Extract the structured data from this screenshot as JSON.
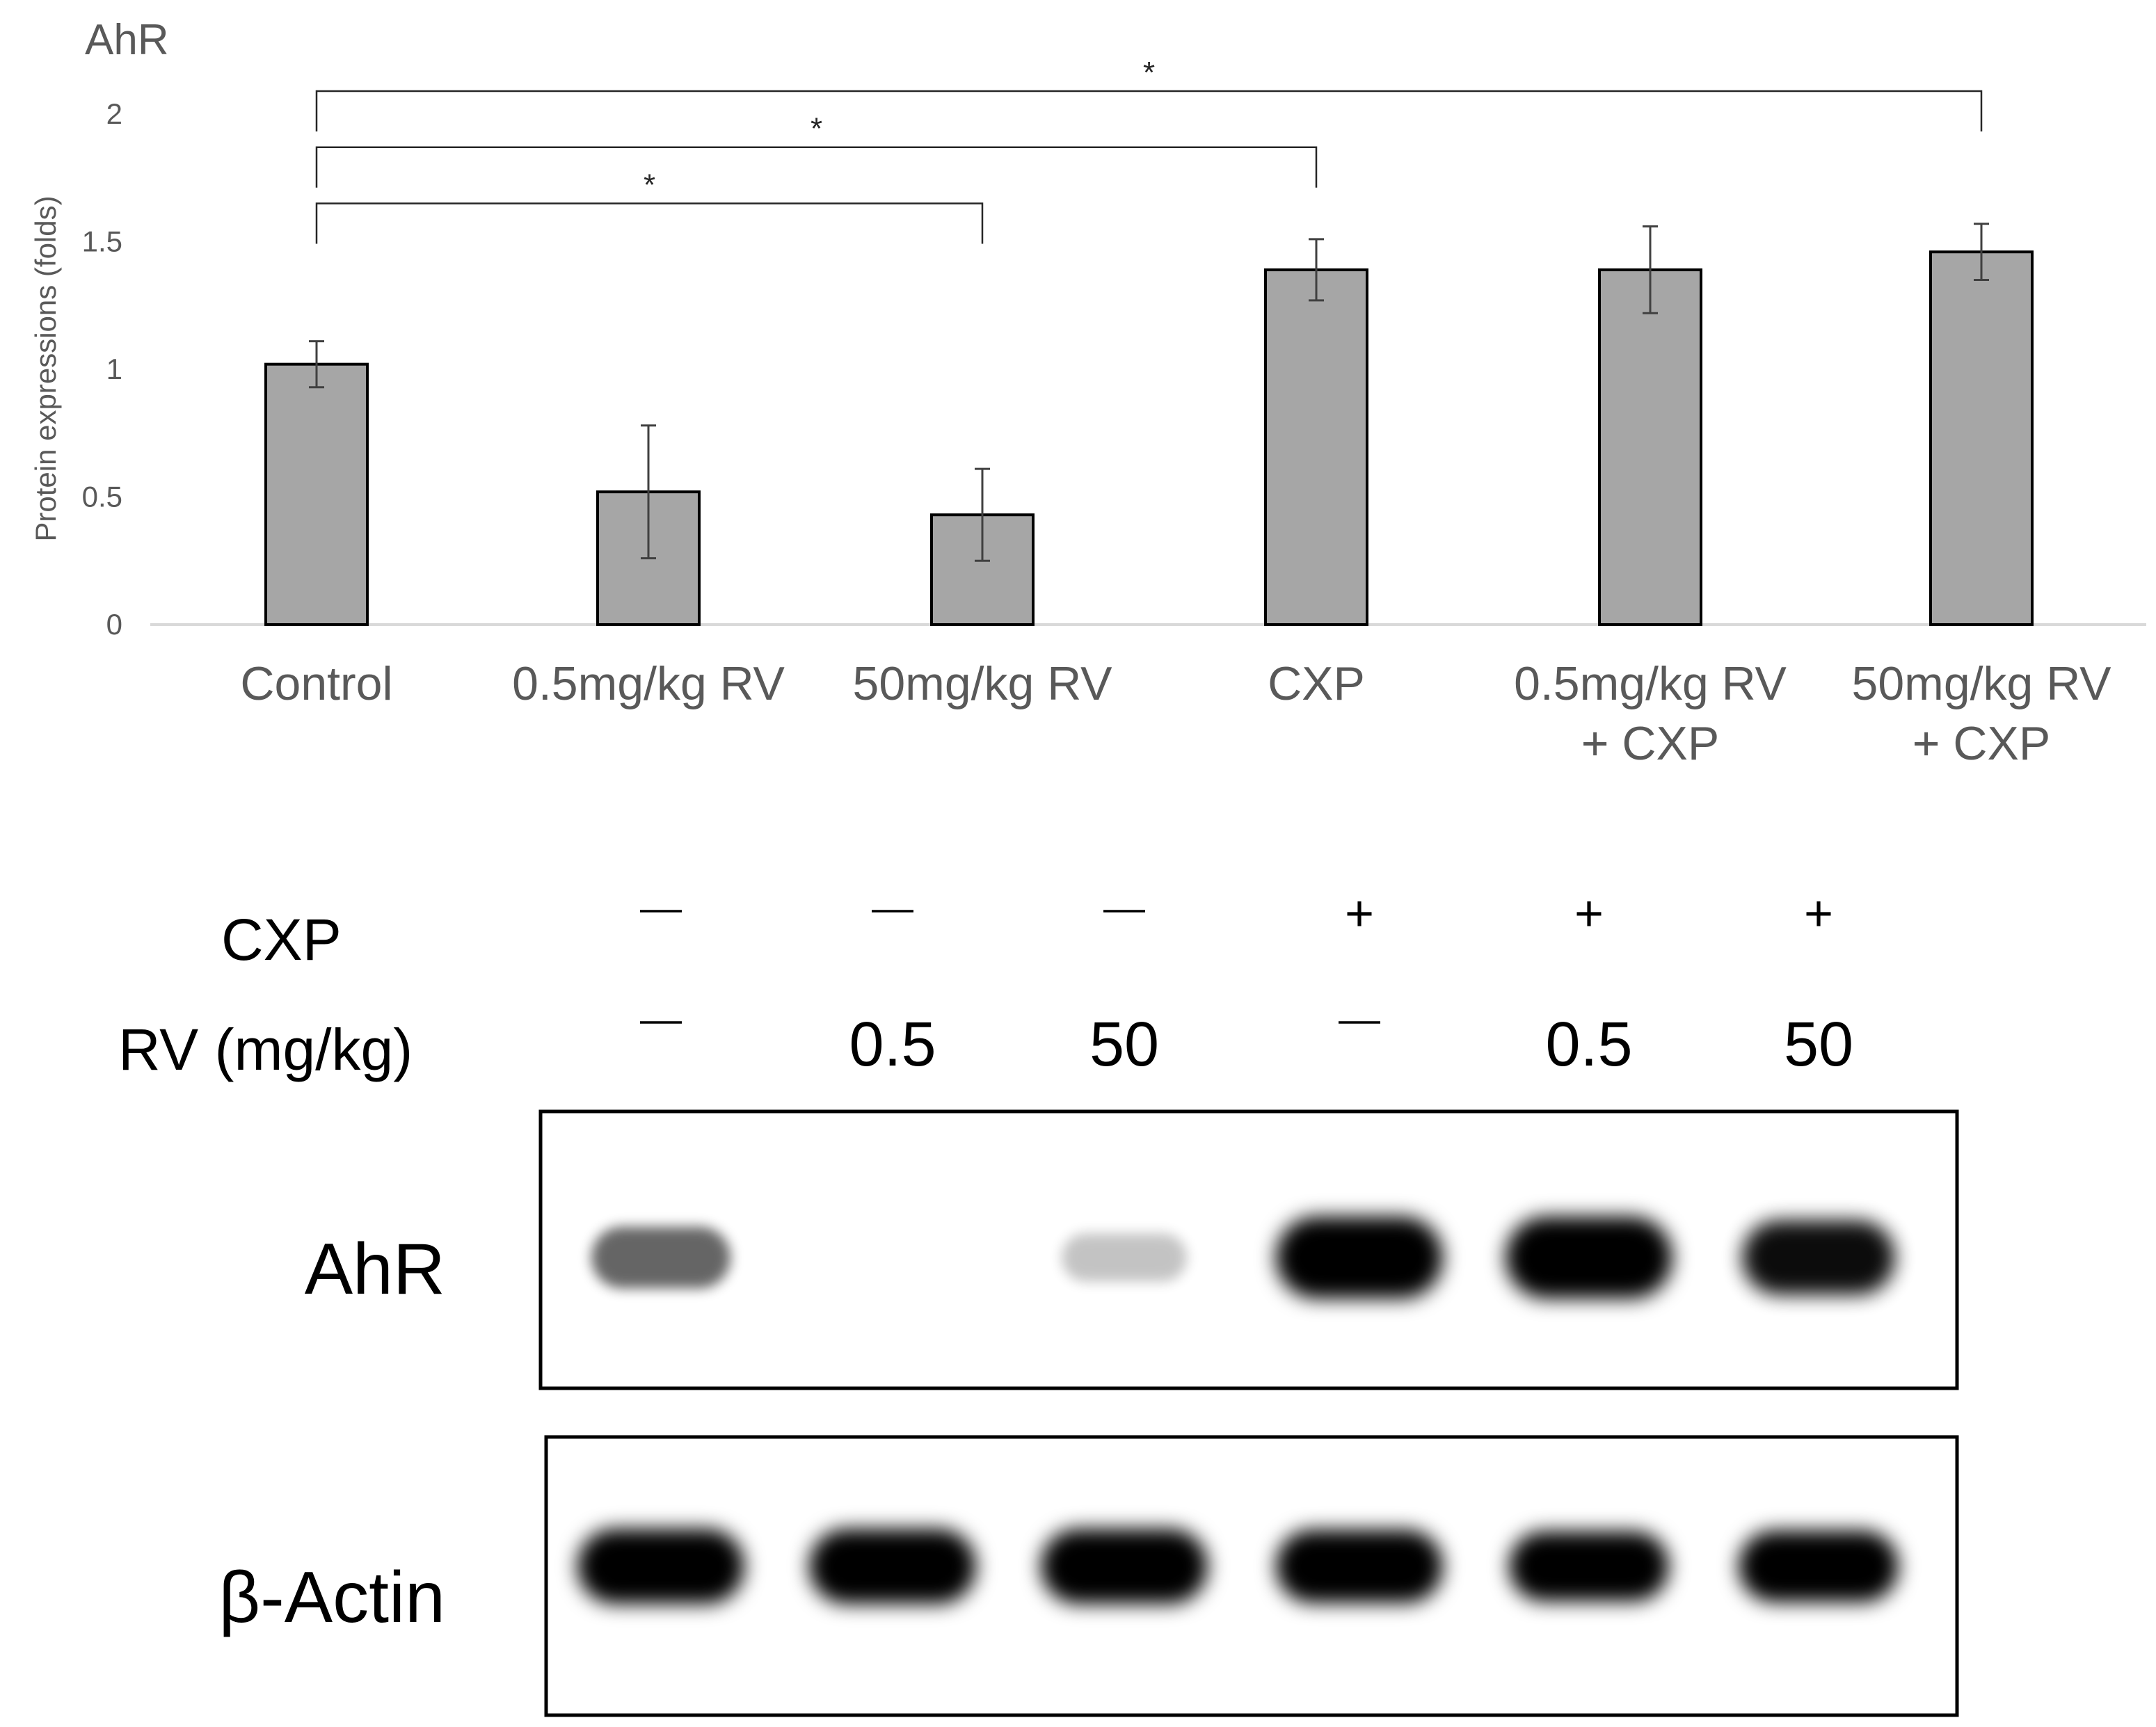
{
  "chart_data": {
    "type": "bar",
    "title": "AhR",
    "ylabel": "Protein expressions (folds)",
    "xlabel": "",
    "ylim": [
      0,
      2
    ],
    "yticks": [
      0,
      0.5,
      1,
      1.5,
      2
    ],
    "grid": false,
    "categories": [
      [
        "Control"
      ],
      [
        "0.5mg/kg RV"
      ],
      [
        "50mg/kg RV"
      ],
      [
        "CXP"
      ],
      [
        "0.5mg/kg RV",
        "+ CXP"
      ],
      [
        "50mg/kg RV",
        "+ CXP"
      ]
    ],
    "values": [
      1.02,
      0.52,
      0.43,
      1.39,
      1.39,
      1.46
    ],
    "errors": [
      0.09,
      0.26,
      0.18,
      0.12,
      0.17,
      0.11
    ],
    "significance": [
      {
        "from": 0,
        "to": 2,
        "label": "*",
        "level": 1.65
      },
      {
        "from": 0,
        "to": 3,
        "label": "*",
        "level": 1.87
      },
      {
        "from": 0,
        "to": 5,
        "label": "*",
        "level": 2.09
      }
    ],
    "colors": {
      "bar": "#a6a6a6",
      "bar_edge": "#000000",
      "error": "#404040",
      "axis": "#d9d9d9",
      "text": "#595959"
    }
  },
  "western_blot": {
    "rows": [
      {
        "label": "CXP",
        "values": [
          "—",
          "—",
          "—",
          "+",
          "+",
          "+"
        ]
      },
      {
        "label": "RV (mg/kg)",
        "values": [
          "—",
          "0.5",
          "50",
          "—",
          "0.5",
          "50"
        ]
      }
    ],
    "panels": [
      {
        "label": "AhR",
        "band_intensity": [
          0.45,
          0.0,
          0.08,
          1.0,
          1.0,
          0.8
        ]
      },
      {
        "label": "β-Actin",
        "band_intensity": [
          1.0,
          1.0,
          1.0,
          0.95,
          0.85,
          0.9
        ]
      }
    ]
  }
}
